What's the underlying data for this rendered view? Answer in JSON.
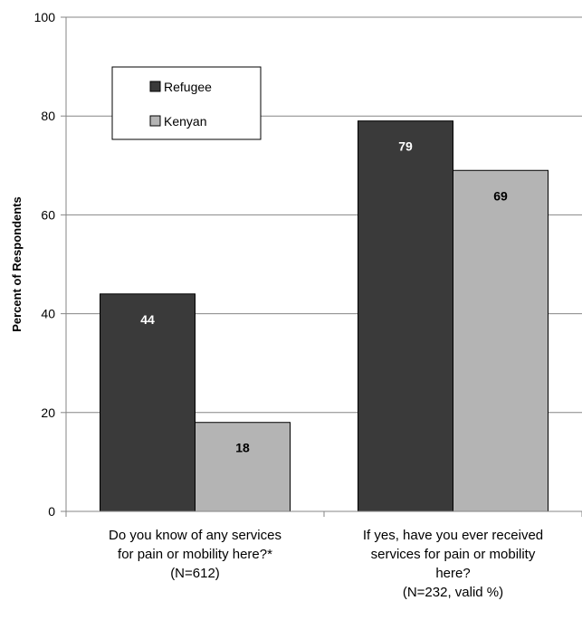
{
  "chart_data": {
    "type": "bar",
    "ylabel": "Percent of Respondents",
    "ylim": [
      0,
      100
    ],
    "yticks": [
      0,
      20,
      40,
      60,
      80,
      100
    ],
    "grid": true,
    "legend_position": "top-left",
    "categories": [
      [
        "Do you know of any services",
        "for pain or mobility here?*",
        "(N=612)"
      ],
      [
        "If yes, have you ever received",
        "services for pain or mobility",
        "here?",
        "(N=232, valid %)"
      ]
    ],
    "series": [
      {
        "name": "Refugee",
        "values": [
          44,
          79
        ],
        "color": "#3a3a3a",
        "label_color": "#ffffff"
      },
      {
        "name": "Kenyan",
        "values": [
          18,
          69
        ],
        "color": "#b4b4b4",
        "label_color": "#000000"
      }
    ]
  }
}
